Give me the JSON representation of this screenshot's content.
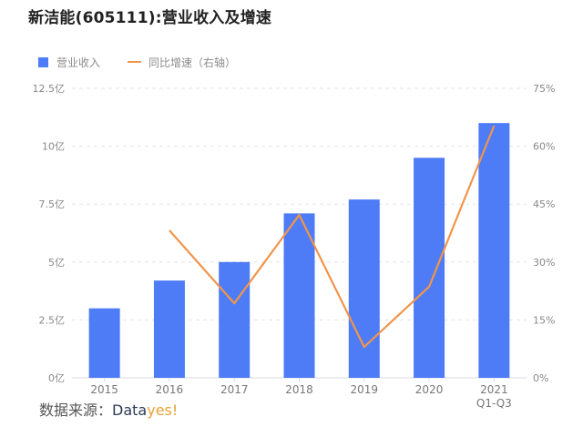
{
  "title": "新洁能(605111):营业收入及增速",
  "legend": {
    "bar_label": "营业收入",
    "line_label": "同比增速（右轴）"
  },
  "colors": {
    "bar": "#4e7cf6",
    "line": "#f0954b",
    "grid": "#e4e4e4",
    "source_data": "#2b3a55",
    "source_yes": "#e6a234"
  },
  "source": {
    "prefix": "数据来源：",
    "brand_a": "Data",
    "brand_b": "yes!"
  },
  "chart_data": {
    "type": "bar",
    "title": "新洁能(605111):营业收入及增速",
    "categories": [
      "2015",
      "2016",
      "2017",
      "2018",
      "2019",
      "2020",
      "2021 Q1-Q3"
    ],
    "x_tick_lines": [
      [
        "2015"
      ],
      [
        "2016"
      ],
      [
        "2017"
      ],
      [
        "2018"
      ],
      [
        "2019"
      ],
      [
        "2020"
      ],
      [
        "2021",
        "Q1-Q3"
      ]
    ],
    "series": [
      {
        "name": "营业收入",
        "type": "bar",
        "axis": "left",
        "unit": "亿",
        "values": [
          3.0,
          4.2,
          5.0,
          7.1,
          7.7,
          9.5,
          11.0
        ]
      },
      {
        "name": "同比增速（右轴）",
        "type": "line",
        "axis": "right",
        "unit": "%",
        "values": [
          null,
          38.2,
          19.3,
          42.2,
          8.0,
          23.6,
          65.3
        ]
      }
    ],
    "y_left": {
      "ylim": [
        0,
        12.5
      ],
      "ticks": [
        "0亿",
        "2.5亿",
        "5亿",
        "7.5亿",
        "10亿",
        "12.5亿"
      ]
    },
    "y_right": {
      "ylim": [
        0,
        75
      ],
      "ticks": [
        "0%",
        "15%",
        "30%",
        "45%",
        "60%",
        "75%"
      ]
    },
    "xlabel": "",
    "ylabel": "",
    "grid": true,
    "legend_position": "top-left"
  }
}
